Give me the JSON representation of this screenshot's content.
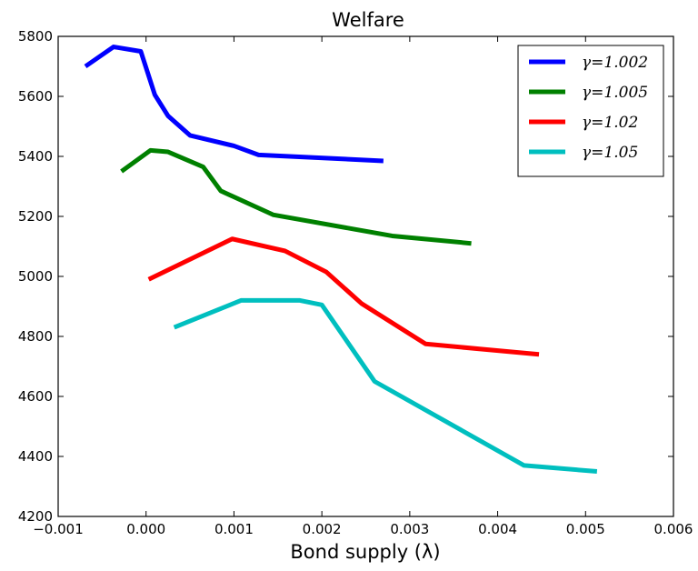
{
  "chart_data": {
    "type": "line",
    "title": "Welfare",
    "xlabel": "Bond supply (λ)",
    "ylabel": "",
    "xlim": [
      -0.001,
      0.006
    ],
    "ylim": [
      4200,
      5800
    ],
    "xticks": [
      -0.001,
      0.0,
      0.001,
      0.002,
      0.003,
      0.004,
      0.005,
      0.006
    ],
    "xtick_labels": [
      "−0.001",
      "0.000",
      "0.001",
      "0.002",
      "0.003",
      "0.004",
      "0.005",
      "0.006"
    ],
    "yticks": [
      4200,
      4400,
      4600,
      4800,
      5000,
      5200,
      5400,
      5600,
      5800
    ],
    "ytick_labels": [
      "4200",
      "4400",
      "4600",
      "4800",
      "5000",
      "5200",
      "5400",
      "5600",
      "5800"
    ],
    "grid": false,
    "legend_position": "top-right",
    "series": [
      {
        "name": "γ=1.002",
        "color": "#0000ff",
        "x": [
          -0.00069,
          -0.00037,
          -6e-05,
          0.0001,
          0.00025,
          0.0005,
          0.001,
          0.00128,
          0.0027
        ],
        "y": [
          5700,
          5765,
          5750,
          5605,
          5535,
          5470,
          5435,
          5405,
          5385
        ]
      },
      {
        "name": "γ=1.005",
        "color": "#008000",
        "x": [
          -0.00028,
          5e-05,
          0.00025,
          0.00065,
          0.00085,
          0.00145,
          0.0028,
          0.0037
        ],
        "y": [
          5350,
          5420,
          5415,
          5365,
          5285,
          5205,
          5135,
          5110
        ]
      },
      {
        "name": "γ=1.02",
        "color": "#ff0000",
        "x": [
          3e-05,
          0.00098,
          0.00158,
          0.00205,
          0.00245,
          0.00318,
          0.00447
        ],
        "y": [
          4990,
          5125,
          5085,
          5015,
          4910,
          4775,
          4740
        ]
      },
      {
        "name": "γ=1.05",
        "color": "#00bfbf",
        "x": [
          0.00032,
          0.00108,
          0.00175,
          0.002,
          0.0026,
          0.0043,
          0.00513
        ],
        "y": [
          4830,
          4920,
          4920,
          4905,
          4650,
          4370,
          4350
        ]
      }
    ]
  }
}
